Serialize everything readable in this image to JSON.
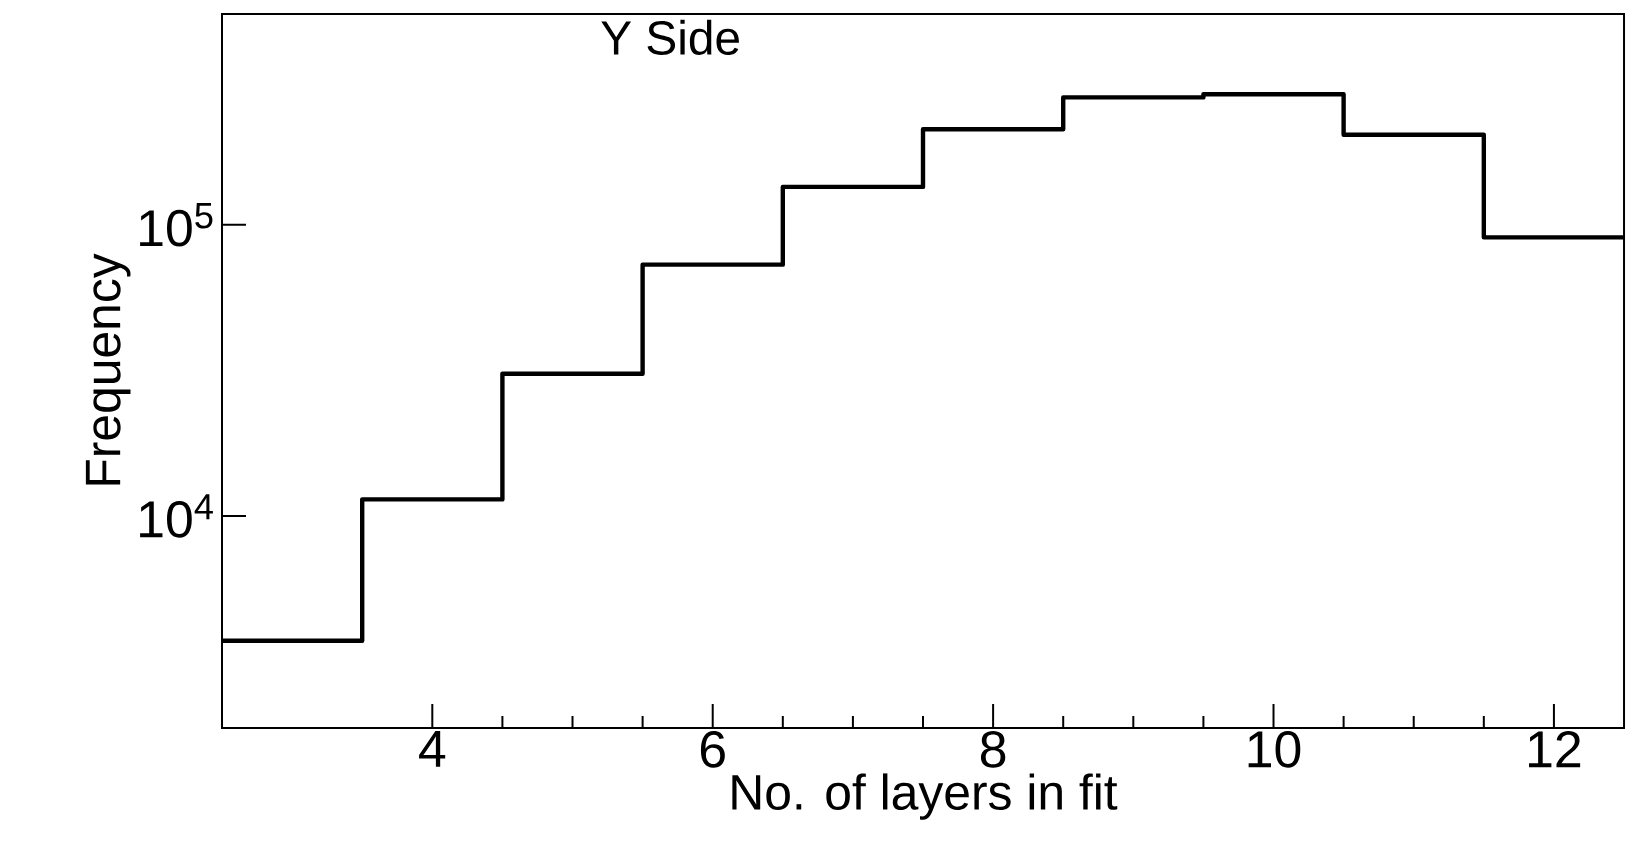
{
  "chart_data": {
    "type": "histogram",
    "title": "Y Side",
    "xlabel": "No. of layers in fit",
    "ylabel": "Frequency",
    "bins": [
      2.5,
      3.5,
      4.5,
      5.5,
      6.5,
      7.5,
      8.5,
      9.5,
      10.5,
      11.5,
      12.5
    ],
    "values": [
      3730,
      11400,
      30800,
      73000,
      135000,
      213000,
      274000,
      281000,
      204000,
      90600
    ],
    "color": "#000000",
    "log": "y",
    "grid": false,
    "xlim": [
      2.5,
      12.5
    ],
    "xticks": [
      4,
      6,
      8,
      10,
      12
    ],
    "ylim": [
      1870,
      530000
    ],
    "yticks": [
      {
        "value": 10000,
        "label": "10$^{4}$"
      },
      {
        "value": 100000,
        "label": "10$^{5}$"
      }
    ]
  }
}
